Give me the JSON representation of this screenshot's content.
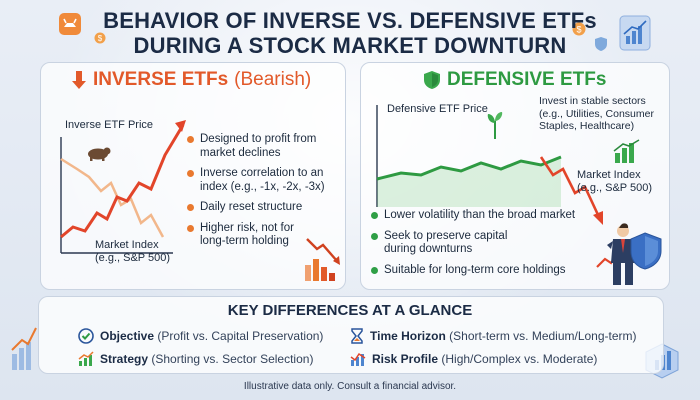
{
  "title": {
    "line1": "BEHAVIOR OF INVERSE VS. DEFENSIVE ETFs",
    "line2": "DURING A STOCK MARKET DOWNTURN"
  },
  "inverse": {
    "heading_main": "INVERSE ETFs",
    "heading_sub": "(Bearish)",
    "chart_label_etf": "Inverse ETF Price",
    "chart_label_index_1": "Market Index",
    "chart_label_index_2": "(e.g., S&P 500)",
    "bullets": [
      [
        "Designed to profit from",
        "market declines"
      ],
      [
        "Inverse correlation to an",
        "index (e.g., -1x, -2x, -3x)"
      ],
      [
        "Daily reset structure"
      ],
      [
        "Higher risk, not for",
        "long-term holding"
      ]
    ],
    "accent": "#e2592a"
  },
  "defensive": {
    "heading_main": "DEFENSIVE ETFs",
    "chart_label_etf": "Defensive ETF Price",
    "sectors_label": [
      "Invest in stable sectors",
      "(e.g., Utilities, Consumer",
      "Staples, Healthcare)"
    ],
    "chart_label_index_1": "Market Index",
    "chart_label_index_2": "(e.g., S&P 500)",
    "bullets": [
      [
        "Lower volatility than the broad market"
      ],
      [
        "Seek to preserve capital",
        "during downturns"
      ],
      [
        "Suitable for long-term core holdings"
      ]
    ],
    "accent": "#2e9a42"
  },
  "key": {
    "title": "KEY DIFFERENCES AT A GLANCE",
    "items": [
      {
        "bold": "Objective",
        "rest": "(Profit vs. Capital Preservation)",
        "icon": "check-circle-icon"
      },
      {
        "bold": "Time Horizon",
        "rest": "(Short-term vs. Medium/Long-term)",
        "icon": "hourglass-icon"
      },
      {
        "bold": "Strategy",
        "rest": "(Shorting vs. Sector Selection)",
        "icon": "chart-arrow-icon"
      },
      {
        "bold": "Risk Profile",
        "rest": "(High/Complex vs. Moderate)",
        "icon": "chart-trend-icon"
      }
    ]
  },
  "footer": "Illustrative data only. Consult a financial advisor.",
  "colors": {
    "inverse_red": "#e2592a",
    "defensive_green": "#2e9a42",
    "navy": "#1b2b45"
  }
}
